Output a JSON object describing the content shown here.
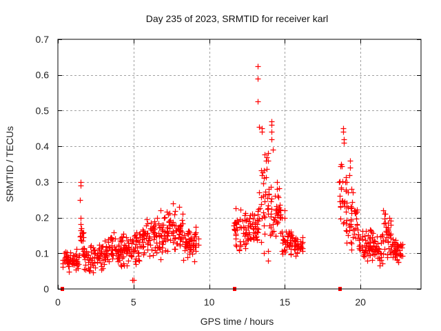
{
  "chart_data": {
    "type": "scatter",
    "title": "Day 235 of 2023, SRMTID for receiver karl",
    "xlabel": "GPS time / hours",
    "ylabel": "SRMTID / TECUs",
    "xlim": [
      0,
      24
    ],
    "ylim": [
      0,
      0.7
    ],
    "xticks": [
      0,
      5,
      10,
      15,
      20
    ],
    "xtick_labels": [
      "0",
      "5",
      "10",
      "15",
      "20"
    ],
    "yticks": [
      0,
      0.1,
      0.2,
      0.3,
      0.4,
      0.5,
      0.6,
      0.7
    ],
    "ytick_labels": [
      "0",
      "0.1",
      "0.2",
      "0.3",
      "0.4",
      "0.5",
      "0.6",
      "0.7"
    ],
    "grid": true,
    "legend": "none",
    "marker_color": "#ff0000",
    "series": [
      {
        "name": "SRMTID",
        "marker": "plus",
        "envelope_segments": [
          {
            "t_start": 0.3,
            "t_end": 1.4,
            "low": 0.04,
            "high": 0.12
          },
          {
            "t_start": 1.4,
            "t_end": 1.7,
            "low": 0.09,
            "high": 0.2
          },
          {
            "t_start": 1.7,
            "t_end": 3.2,
            "low": 0.04,
            "high": 0.14
          },
          {
            "t_start": 3.2,
            "t_end": 4.2,
            "low": 0.06,
            "high": 0.16
          },
          {
            "t_start": 4.2,
            "t_end": 5.5,
            "low": 0.06,
            "high": 0.17
          },
          {
            "t_start": 5.5,
            "t_end": 7.0,
            "low": 0.08,
            "high": 0.21
          },
          {
            "t_start": 7.0,
            "t_end": 8.3,
            "low": 0.1,
            "high": 0.23
          },
          {
            "t_start": 8.3,
            "t_end": 9.3,
            "low": 0.07,
            "high": 0.18
          },
          {
            "t_start": 11.6,
            "t_end": 12.7,
            "low": 0.1,
            "high": 0.24
          },
          {
            "t_start": 12.7,
            "t_end": 13.2,
            "low": 0.12,
            "high": 0.22
          },
          {
            "t_start": 13.2,
            "t_end": 14.0,
            "low": 0.09,
            "high": 0.4
          },
          {
            "t_start": 14.0,
            "t_end": 14.8,
            "low": 0.13,
            "high": 0.3
          },
          {
            "t_start": 14.8,
            "t_end": 15.6,
            "low": 0.09,
            "high": 0.17
          },
          {
            "t_start": 15.6,
            "t_end": 16.2,
            "low": 0.09,
            "high": 0.15
          },
          {
            "t_start": 18.6,
            "t_end": 19.2,
            "low": 0.12,
            "high": 0.35
          },
          {
            "t_start": 19.2,
            "t_end": 19.8,
            "low": 0.09,
            "high": 0.26
          },
          {
            "t_start": 19.8,
            "t_end": 21.0,
            "low": 0.07,
            "high": 0.17
          },
          {
            "t_start": 21.0,
            "t_end": 21.5,
            "low": 0.05,
            "high": 0.16
          },
          {
            "t_start": 21.5,
            "t_end": 22.0,
            "low": 0.07,
            "high": 0.22
          },
          {
            "t_start": 22.0,
            "t_end": 22.8,
            "low": 0.07,
            "high": 0.15
          }
        ],
        "points": [
          [
            1.5,
            0.3
          ],
          [
            1.5,
            0.29
          ],
          [
            1.45,
            0.25
          ],
          [
            1.5,
            0.2
          ],
          [
            1.55,
            0.17
          ],
          [
            4.9,
            0.025
          ],
          [
            5.0,
            0.025
          ],
          [
            7.6,
            0.24
          ],
          [
            8.0,
            0.23
          ],
          [
            6.8,
            0.22
          ],
          [
            13.2,
            0.625
          ],
          [
            13.2,
            0.59
          ],
          [
            13.2,
            0.525
          ],
          [
            13.3,
            0.455
          ],
          [
            13.5,
            0.45
          ],
          [
            13.5,
            0.44
          ],
          [
            14.1,
            0.47
          ],
          [
            14.1,
            0.46
          ],
          [
            14.1,
            0.44
          ],
          [
            14.1,
            0.42
          ],
          [
            14.2,
            0.39
          ],
          [
            13.9,
            0.38
          ],
          [
            13.8,
            0.37
          ],
          [
            14.5,
            0.3
          ],
          [
            14.5,
            0.28
          ],
          [
            15.0,
            0.22
          ],
          [
            15.0,
            0.2
          ],
          [
            13.9,
            0.08
          ],
          [
            18.85,
            0.45
          ],
          [
            18.85,
            0.44
          ],
          [
            18.9,
            0.42
          ],
          [
            18.9,
            0.41
          ],
          [
            18.7,
            0.35
          ],
          [
            18.75,
            0.345
          ],
          [
            19.3,
            0.36
          ],
          [
            19.3,
            0.34
          ],
          [
            19.25,
            0.32
          ],
          [
            18.6,
            0.3
          ],
          [
            18.7,
            0.28
          ],
          [
            19.4,
            0.28
          ],
          [
            19.5,
            0.27
          ],
          [
            21.5,
            0.22
          ],
          [
            21.6,
            0.21
          ],
          [
            21.9,
            0.2
          ],
          [
            22.0,
            0.18
          ]
        ]
      },
      {
        "name": "zero-markers",
        "marker": "filled-square",
        "points": [
          [
            0.3,
            0
          ],
          [
            11.7,
            0
          ],
          [
            18.65,
            0
          ]
        ]
      }
    ]
  }
}
